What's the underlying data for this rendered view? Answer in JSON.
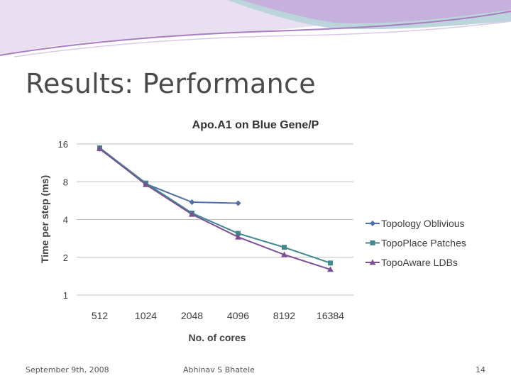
{
  "slide": {
    "title": "Results: Performance",
    "footer_date": "September 9th, 2008",
    "footer_author": "Abhinav S Bhatele",
    "page_number": "14"
  },
  "colors": {
    "title": "#4a4a4a",
    "grid": "#bfbfbf",
    "axis_text": "#404040",
    "decor_purple": "#a97cc1",
    "decor_teal": "#8fb7c0"
  },
  "chart_data": {
    "type": "line",
    "title": "Apo.A1 on Blue Gene/P",
    "xlabel": "No. of cores",
    "ylabel": "Time per step (ms)",
    "yscale": "log2",
    "ylim": [
      1,
      16
    ],
    "yticks": [
      "1",
      "2",
      "4",
      "8",
      "16"
    ],
    "categories": [
      "512",
      "1024",
      "2048",
      "4096",
      "8192",
      "16384"
    ],
    "grid": true,
    "legend_position": "right",
    "series": [
      {
        "name": "Topology Oblivious",
        "marker": "diamond",
        "color": "#4f6fa8",
        "values": [
          14.6,
          7.7,
          5.5,
          5.4,
          null,
          null
        ]
      },
      {
        "name": "TopoPlace Patches",
        "marker": "square",
        "color": "#3f8a8c",
        "values": [
          14.9,
          7.8,
          4.5,
          3.1,
          2.4,
          1.8
        ]
      },
      {
        "name": "TopoAware LDBs",
        "marker": "triangle",
        "color": "#7d4f97",
        "values": [
          14.7,
          7.6,
          4.4,
          2.9,
          2.1,
          1.6
        ]
      }
    ]
  }
}
